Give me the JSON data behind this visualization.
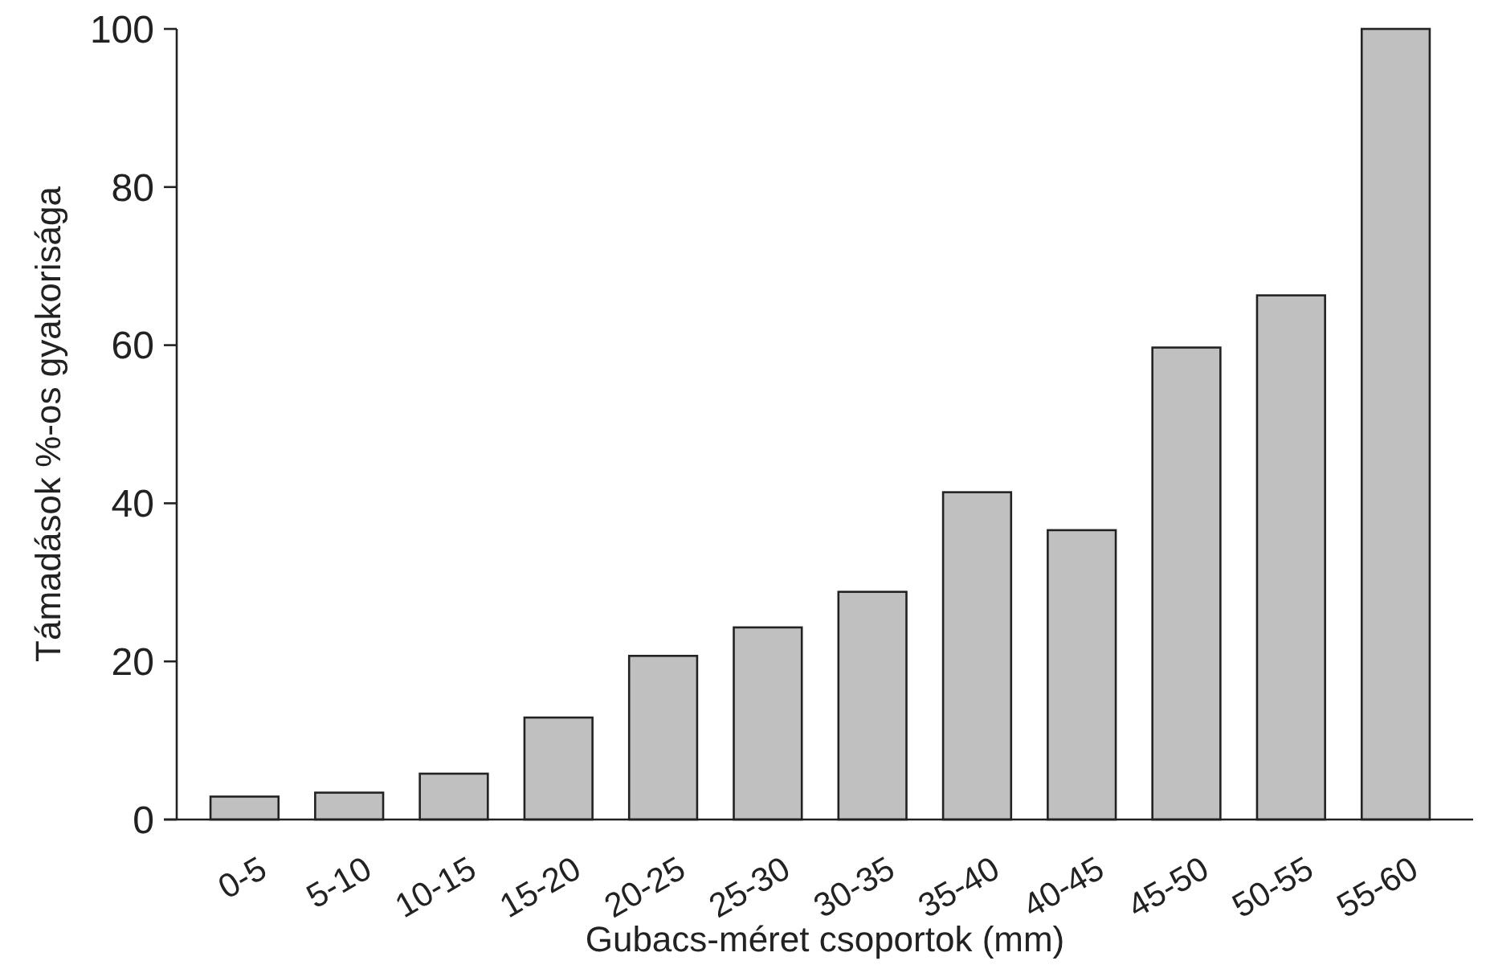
{
  "chart_data": {
    "type": "bar",
    "xlabel": "Gubacs-méret csoportok (mm)",
    "ylabel": "Támadások %-os gyakorisága",
    "categories": [
      "0-5",
      "5-10",
      "10-15",
      "15-20",
      "20-25",
      "25-30",
      "30-35",
      "35-40",
      "40-45",
      "45-50",
      "50-55",
      "55-60"
    ],
    "values": [
      2.9,
      3.4,
      5.8,
      12.9,
      20.7,
      24.3,
      28.8,
      41.4,
      36.6,
      59.7,
      66.3,
      100
    ],
    "color": "#c0c0c0",
    "ylim": [
      0,
      100
    ],
    "yticks": [
      0,
      20,
      40,
      60,
      80,
      100
    ],
    "grid": false
  }
}
